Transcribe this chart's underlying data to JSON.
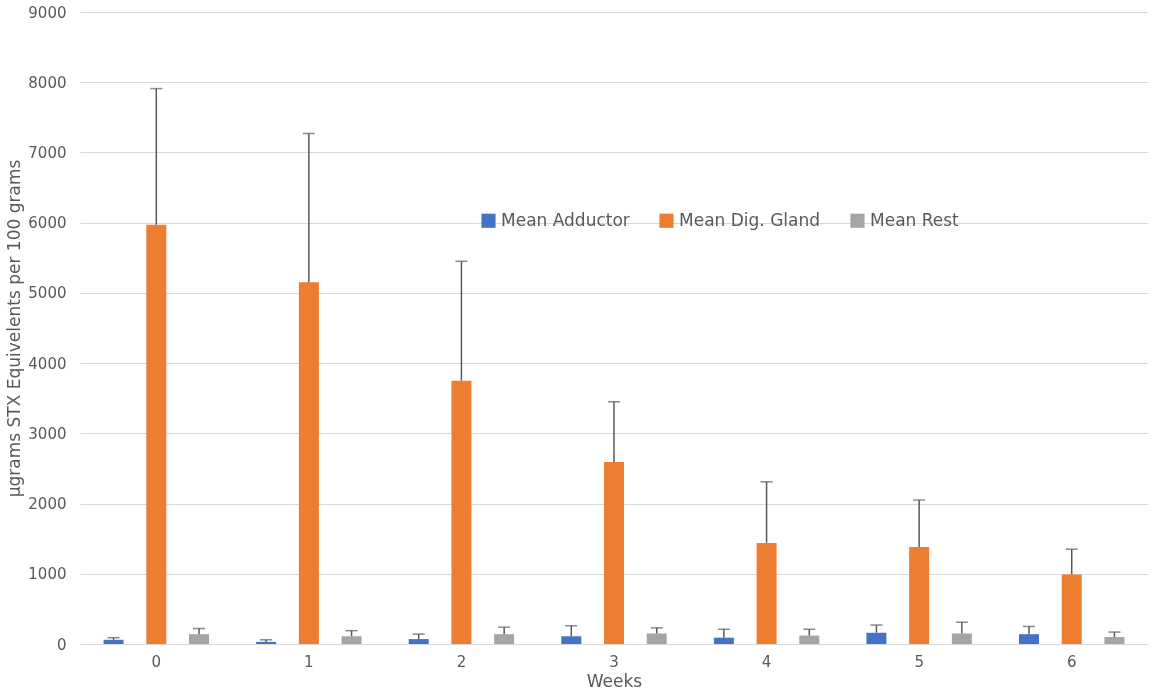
{
  "chart_data": {
    "type": "bar",
    "xlabel": "Weeks",
    "ylabel": "µgrams STX Equivelents per 100  grams",
    "categories": [
      "0",
      "1",
      "2",
      "3",
      "4",
      "5",
      "6"
    ],
    "series": [
      {
        "name": "Mean Adductor",
        "color": "#4472c4",
        "values": [
          60,
          30,
          70,
          110,
          90,
          160,
          140
        ],
        "errors": [
          30,
          30,
          70,
          150,
          120,
          110,
          110
        ]
      },
      {
        "name": "Mean Dig. Gland",
        "color": "#ed7d31",
        "values": [
          5970,
          5150,
          3750,
          2590,
          1440,
          1380,
          990
        ],
        "errors": [
          1940,
          2120,
          1700,
          860,
          870,
          670,
          360
        ]
      },
      {
        "name": "Mean Rest",
        "color": "#a5a5a5",
        "values": [
          140,
          110,
          140,
          150,
          120,
          150,
          100
        ],
        "errors": [
          80,
          80,
          100,
          80,
          90,
          160,
          70
        ]
      }
    ],
    "ylim": [
      0,
      9000
    ],
    "yticks": [
      0,
      1000,
      2000,
      3000,
      4000,
      5000,
      6000,
      7000,
      8000,
      9000
    ],
    "grid": "y",
    "legend": "right"
  }
}
